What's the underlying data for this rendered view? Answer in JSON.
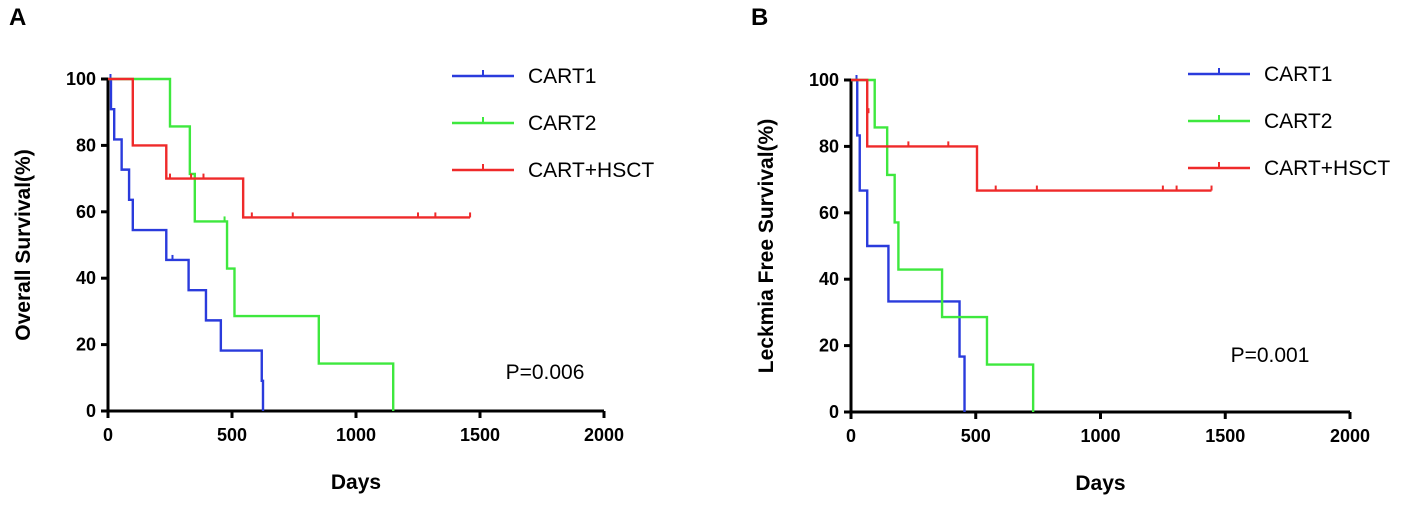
{
  "panels": {
    "a": {
      "letter": "A"
    },
    "b": {
      "letter": "B"
    }
  },
  "chart_data": [
    {
      "type": "line",
      "subtype": "kaplan-meier",
      "panel": "A",
      "xlabel": "Days",
      "ylabel": "Overall Survival(%)",
      "xlim": [
        0,
        2000
      ],
      "ylim": [
        0,
        100
      ],
      "xticks": [
        "0",
        "500",
        "1000",
        "1500",
        "2000"
      ],
      "yticks": [
        "0",
        "20",
        "40",
        "60",
        "80",
        "100"
      ],
      "annotation": "P=0.006",
      "legend_position": "top-right",
      "series": [
        {
          "name": "CART1",
          "color": "#2a3bdc",
          "steps": [
            [
              0,
              100
            ],
            [
              12,
              90.9
            ],
            [
              25,
              81.8
            ],
            [
              55,
              72.7
            ],
            [
              85,
              63.6
            ],
            [
              100,
              54.5
            ],
            [
              235,
              45.5
            ],
            [
              325,
              36.4
            ],
            [
              395,
              27.3
            ],
            [
              455,
              18.2
            ],
            [
              620,
              9.1
            ],
            [
              625,
              0
            ]
          ],
          "censored": [
            [
              10,
              100
            ],
            [
              260,
              45.5
            ]
          ]
        },
        {
          "name": "CART2",
          "color": "#3ee83e",
          "steps": [
            [
              0,
              100
            ],
            [
              250,
              85.7
            ],
            [
              330,
              71.4
            ],
            [
              350,
              57.1
            ],
            [
              480,
              42.9
            ],
            [
              510,
              28.6
            ],
            [
              850,
              14.3
            ],
            [
              1150,
              0
            ]
          ],
          "censored": [
            [
              470,
              57.1
            ]
          ]
        },
        {
          "name": "CART+HSCT",
          "color": "#ef2a2a",
          "steps": [
            [
              0,
              100
            ],
            [
              100,
              80
            ],
            [
              235,
              70
            ],
            [
              545,
              58.3
            ],
            [
              1460,
              58.3
            ]
          ],
          "censored": [
            [
              250,
              70
            ],
            [
              335,
              70
            ],
            [
              385,
              70
            ],
            [
              580,
              58.3
            ],
            [
              745,
              58.3
            ],
            [
              1250,
              58.3
            ],
            [
              1320,
              58.3
            ],
            [
              1460,
              58.3
            ]
          ]
        }
      ]
    },
    {
      "type": "line",
      "subtype": "kaplan-meier",
      "panel": "B",
      "xlabel": "Days",
      "ylabel": "Leckmia Free Survival(%)",
      "xlim": [
        0,
        2000
      ],
      "ylim": [
        0,
        100
      ],
      "xticks": [
        "0",
        "500",
        "1000",
        "1500",
        "2000"
      ],
      "yticks": [
        "0",
        "20",
        "40",
        "60",
        "80",
        "100"
      ],
      "annotation": "P=0.001",
      "legend_position": "top-right",
      "series": [
        {
          "name": "CART1",
          "color": "#2a3bdc",
          "steps": [
            [
              0,
              100
            ],
            [
              25,
              83.3
            ],
            [
              35,
              66.7
            ],
            [
              65,
              50
            ],
            [
              150,
              33.3
            ],
            [
              435,
              16.7
            ],
            [
              455,
              0
            ]
          ],
          "censored": [
            [
              22,
              100
            ]
          ]
        },
        {
          "name": "CART2",
          "color": "#3ee83e",
          "steps": [
            [
              0,
              100
            ],
            [
              95,
              85.7
            ],
            [
              145,
              71.4
            ],
            [
              175,
              57.1
            ],
            [
              190,
              42.9
            ],
            [
              365,
              28.6
            ],
            [
              545,
              14.3
            ],
            [
              730,
              0
            ]
          ],
          "censored": []
        },
        {
          "name": "CART+HSCT",
          "color": "#ef2a2a",
          "steps": [
            [
              0,
              100
            ],
            [
              65,
              80
            ],
            [
              505,
              66.7
            ],
            [
              1445,
              66.7
            ]
          ],
          "censored": [
            [
              70,
              90
            ],
            [
              230,
              80
            ],
            [
              390,
              80
            ],
            [
              580,
              66.7
            ],
            [
              745,
              66.7
            ],
            [
              1250,
              66.7
            ],
            [
              1305,
              66.7
            ],
            [
              1445,
              66.7
            ]
          ]
        }
      ]
    }
  ]
}
